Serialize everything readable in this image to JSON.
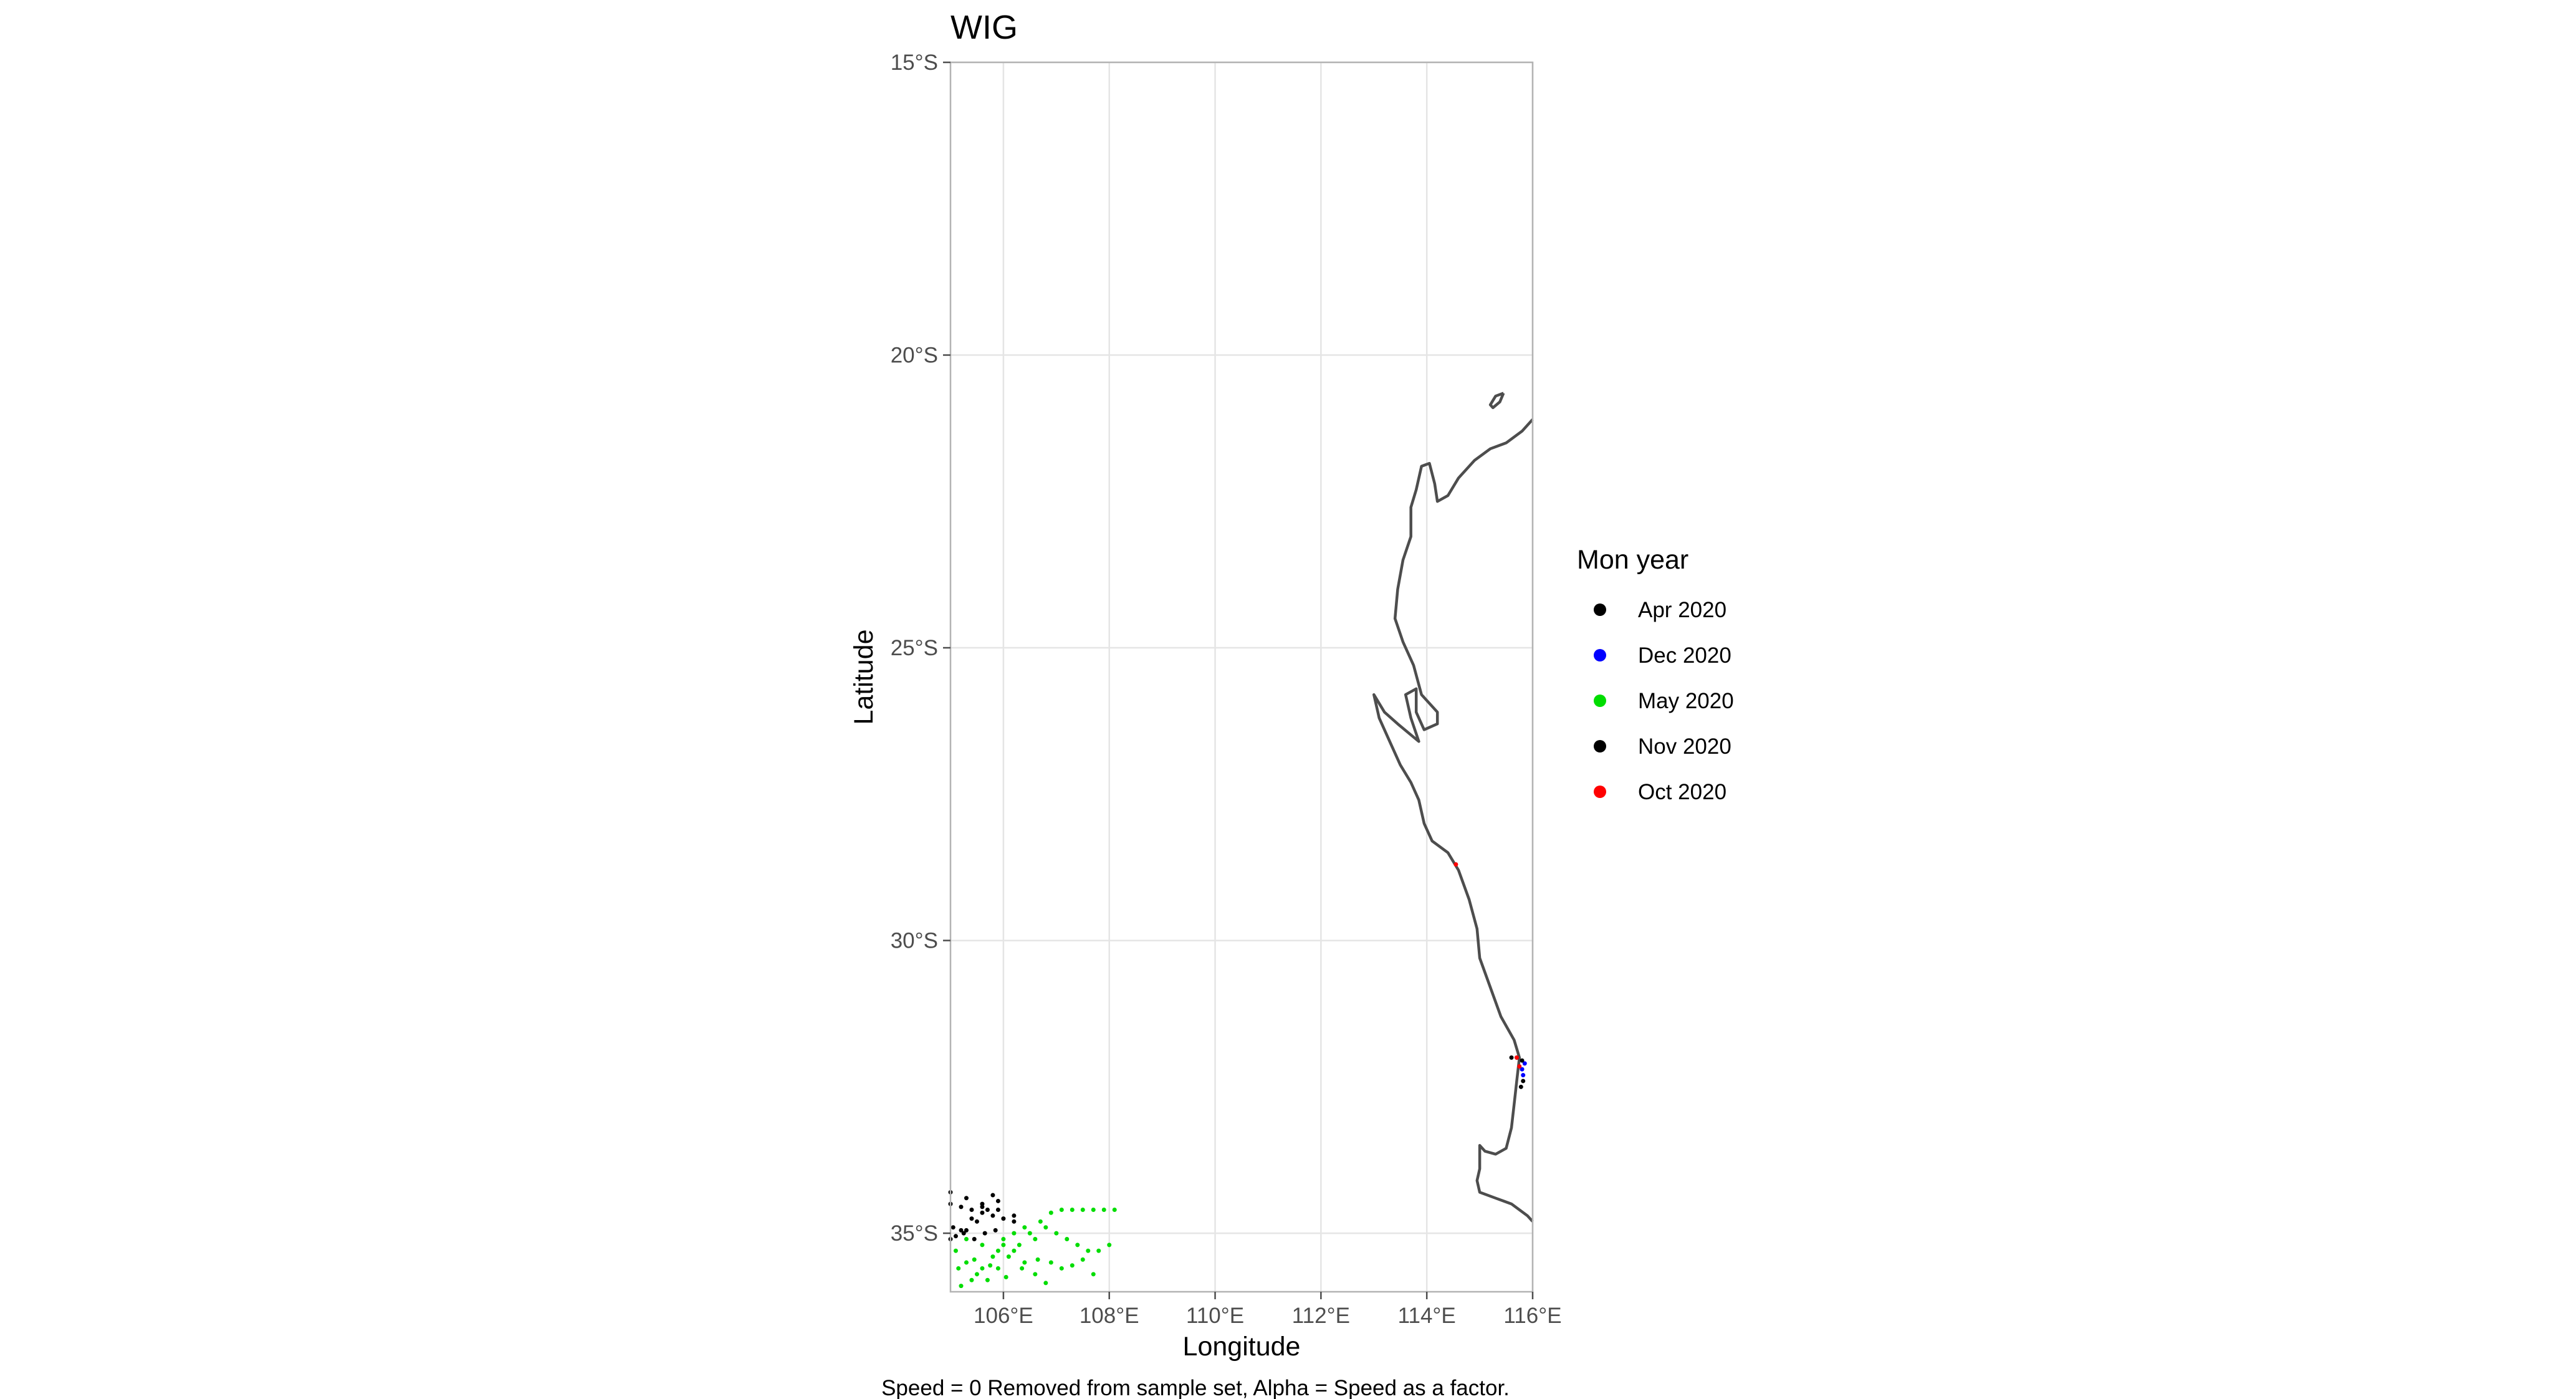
{
  "chart_data": {
    "type": "scatter",
    "title": "WIG",
    "xlabel": "Longitude",
    "ylabel": "Latitude",
    "caption": "Speed = 0 Removed from sample set, Alpha = Speed as a factor.",
    "xlim": [
      105,
      116
    ],
    "ylim": [
      -36,
      -15
    ],
    "x_ticks": [
      {
        "value": 106,
        "label": "106°E"
      },
      {
        "value": 108,
        "label": "108°E"
      },
      {
        "value": 110,
        "label": "110°E"
      },
      {
        "value": 112,
        "label": "112°E"
      },
      {
        "value": 114,
        "label": "114°E"
      },
      {
        "value": 116,
        "label": "116°E"
      }
    ],
    "y_ticks": [
      {
        "value": -15,
        "label": "15°S"
      },
      {
        "value": -20,
        "label": "20°S"
      },
      {
        "value": -25,
        "label": "25°S"
      },
      {
        "value": -30,
        "label": "30°S"
      },
      {
        "value": -35,
        "label": "35°S"
      }
    ],
    "grid": true,
    "legend": {
      "title": "Mon year",
      "position": "right",
      "entries": [
        {
          "label": "Apr 2020",
          "color": "#000000"
        },
        {
          "label": "Dec 2020",
          "color": "#0000ff"
        },
        {
          "label": "May 2020",
          "color": "#00dd00"
        },
        {
          "label": "Nov 2020",
          "color": "#000000"
        },
        {
          "label": "Oct 2020",
          "color": "#ff0000"
        }
      ]
    },
    "coastline": [
      [
        116.0,
        -21.1
      ],
      [
        115.8,
        -21.3
      ],
      [
        115.5,
        -21.5
      ],
      [
        115.2,
        -21.6
      ],
      [
        114.9,
        -21.8
      ],
      [
        114.6,
        -22.1
      ],
      [
        114.4,
        -22.4
      ],
      [
        114.2,
        -22.5
      ],
      [
        114.15,
        -22.2
      ],
      [
        114.05,
        -21.85
      ],
      [
        113.9,
        -21.9
      ],
      [
        113.8,
        -22.3
      ],
      [
        113.7,
        -22.6
      ],
      [
        113.7,
        -23.1
      ],
      [
        113.55,
        -23.5
      ],
      [
        113.45,
        -24.0
      ],
      [
        113.4,
        -24.5
      ],
      [
        113.55,
        -24.9
      ],
      [
        113.75,
        -25.3
      ],
      [
        113.9,
        -25.8
      ],
      [
        114.2,
        -26.1
      ],
      [
        114.2,
        -26.3
      ],
      [
        113.95,
        -26.4
      ],
      [
        113.8,
        -26.1
      ],
      [
        113.8,
        -25.7
      ],
      [
        113.6,
        -25.8
      ],
      [
        113.7,
        -26.2
      ],
      [
        113.85,
        -26.6
      ],
      [
        113.45,
        -26.3
      ],
      [
        113.2,
        -26.1
      ],
      [
        113.0,
        -25.8
      ],
      [
        113.1,
        -26.2
      ],
      [
        113.3,
        -26.6
      ],
      [
        113.5,
        -27.0
      ],
      [
        113.7,
        -27.3
      ],
      [
        113.85,
        -27.6
      ],
      [
        113.95,
        -28.0
      ],
      [
        114.1,
        -28.3
      ],
      [
        114.4,
        -28.5
      ],
      [
        114.6,
        -28.8
      ],
      [
        114.8,
        -29.3
      ],
      [
        114.95,
        -29.8
      ],
      [
        115.0,
        -30.3
      ],
      [
        115.2,
        -30.8
      ],
      [
        115.4,
        -31.3
      ],
      [
        115.65,
        -31.7
      ],
      [
        115.75,
        -32.0
      ],
      [
        115.7,
        -32.4
      ],
      [
        115.65,
        -32.8
      ],
      [
        115.6,
        -33.2
      ],
      [
        115.5,
        -33.55
      ],
      [
        115.3,
        -33.65
      ],
      [
        115.1,
        -33.6
      ],
      [
        115.0,
        -33.5
      ],
      [
        115.0,
        -33.9
      ],
      [
        114.95,
        -34.1
      ],
      [
        115.0,
        -34.3
      ],
      [
        115.3,
        -34.4
      ],
      [
        115.6,
        -34.5
      ],
      [
        115.9,
        -34.7
      ],
      [
        116.0,
        -34.8
      ]
    ],
    "island": [
      [
        115.45,
        -20.65
      ],
      [
        115.38,
        -20.8
      ],
      [
        115.25,
        -20.9
      ],
      [
        115.2,
        -20.85
      ],
      [
        115.3,
        -20.7
      ],
      [
        115.45,
        -20.65
      ]
    ],
    "series": [
      {
        "name": "Apr 2020",
        "color": "#000000",
        "points": [
          [
            105.0,
            -34.5
          ],
          [
            105.2,
            -34.55
          ],
          [
            105.4,
            -34.6
          ],
          [
            105.6,
            -34.65
          ],
          [
            105.8,
            -34.7
          ],
          [
            106.0,
            -34.75
          ],
          [
            106.2,
            -34.8
          ],
          [
            105.1,
            -35.05
          ],
          [
            105.3,
            -34.95
          ],
          [
            105.5,
            -34.8
          ],
          [
            105.7,
            -34.6
          ],
          [
            105.9,
            -34.45
          ],
          [
            105.05,
            -34.9
          ],
          [
            105.25,
            -35.0
          ],
          [
            105.45,
            -35.1
          ],
          [
            105.65,
            -35.0
          ],
          [
            105.85,
            -34.95
          ]
        ]
      },
      {
        "name": "Dec 2020",
        "color": "#0000ff",
        "points": [
          [
            115.85,
            -32.1
          ],
          [
            115.8,
            -32.2
          ],
          [
            115.82,
            -32.3
          ]
        ]
      },
      {
        "name": "May 2020",
        "color": "#00dd00",
        "points": [
          [
            105.1,
            -35.3
          ],
          [
            105.3,
            -35.5
          ],
          [
            105.5,
            -35.7
          ],
          [
            105.7,
            -35.8
          ],
          [
            105.9,
            -35.6
          ],
          [
            106.1,
            -35.4
          ],
          [
            106.3,
            -35.2
          ],
          [
            106.5,
            -35.0
          ],
          [
            106.7,
            -34.8
          ],
          [
            106.9,
            -34.65
          ],
          [
            107.1,
            -34.6
          ],
          [
            107.3,
            -34.6
          ],
          [
            107.5,
            -34.6
          ],
          [
            107.7,
            -34.6
          ],
          [
            107.9,
            -34.6
          ],
          [
            108.1,
            -34.6
          ],
          [
            106.8,
            -34.9
          ],
          [
            107.0,
            -35.0
          ],
          [
            107.2,
            -35.1
          ],
          [
            107.4,
            -35.2
          ],
          [
            107.6,
            -35.3
          ],
          [
            107.8,
            -35.3
          ],
          [
            108.0,
            -35.2
          ],
          [
            106.0,
            -35.1
          ],
          [
            106.2,
            -35.3
          ],
          [
            106.4,
            -35.5
          ],
          [
            106.6,
            -35.7
          ],
          [
            106.8,
            -35.85
          ],
          [
            105.2,
            -35.9
          ],
          [
            105.4,
            -35.8
          ],
          [
            105.6,
            -35.6
          ],
          [
            105.8,
            -35.4
          ],
          [
            106.0,
            -35.2
          ],
          [
            106.9,
            -35.5
          ],
          [
            107.1,
            -35.6
          ],
          [
            107.3,
            -35.55
          ],
          [
            107.5,
            -35.45
          ],
          [
            107.7,
            -35.7
          ],
          [
            105.3,
            -35.1
          ],
          [
            105.6,
            -35.2
          ],
          [
            105.9,
            -35.3
          ],
          [
            106.2,
            -35.0
          ],
          [
            106.4,
            -34.9
          ],
          [
            106.6,
            -35.1
          ],
          [
            105.15,
            -35.6
          ],
          [
            105.45,
            -35.45
          ],
          [
            105.75,
            -35.55
          ],
          [
            106.05,
            -35.75
          ],
          [
            106.35,
            -35.6
          ],
          [
            106.65,
            -35.45
          ]
        ]
      },
      {
        "name": "Nov 2020",
        "color": "#000000",
        "points": [
          [
            105.0,
            -34.3
          ],
          [
            105.3,
            -34.4
          ],
          [
            105.6,
            -34.5
          ],
          [
            105.9,
            -34.6
          ],
          [
            106.2,
            -34.7
          ],
          [
            105.0,
            -35.1
          ],
          [
            105.2,
            -34.95
          ],
          [
            105.4,
            -34.75
          ],
          [
            105.6,
            -34.55
          ],
          [
            105.8,
            -34.35
          ],
          [
            115.8,
            -32.05
          ],
          [
            115.7,
            -32.0
          ],
          [
            115.6,
            -32.0
          ],
          [
            115.82,
            -32.4
          ],
          [
            115.78,
            -32.5
          ]
        ]
      },
      {
        "name": "Oct 2020",
        "color": "#ff0000",
        "points": [
          [
            114.55,
            -28.7
          ],
          [
            115.7,
            -32.0
          ],
          [
            115.75,
            -32.15
          ]
        ]
      }
    ]
  }
}
